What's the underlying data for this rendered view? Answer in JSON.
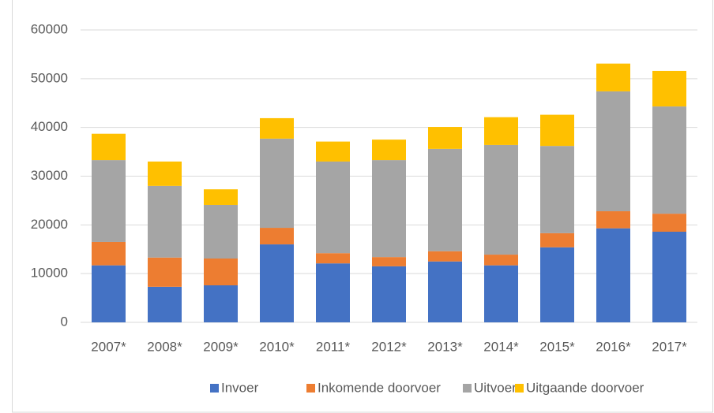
{
  "chart_data": {
    "type": "stacked_bar",
    "categories": [
      "2007*",
      "2008*",
      "2009*",
      "2010*",
      "2011*",
      "2012*",
      "2013*",
      "2014*",
      "2015*",
      "2016*",
      "2017*"
    ],
    "series": [
      {
        "name": "Invoer",
        "color": "#4472c4",
        "values": [
          11700,
          7300,
          7600,
          16000,
          12100,
          11500,
          12500,
          11700,
          15400,
          19300,
          18600
        ]
      },
      {
        "name": "Inkomende doorvoer",
        "color": "#ed7d31",
        "values": [
          4800,
          6000,
          5500,
          3400,
          2100,
          1900,
          2100,
          2200,
          2900,
          3500,
          3700
        ]
      },
      {
        "name": "Uitvoer",
        "color": "#a5a5a5",
        "values": [
          16800,
          14700,
          11000,
          18300,
          18800,
          19900,
          21000,
          22500,
          17900,
          24600,
          22000
        ]
      },
      {
        "name": "Uitgaande doorvoer",
        "color": "#ffc000",
        "values": [
          5400,
          5000,
          3200,
          4200,
          4100,
          4200,
          4500,
          5700,
          6400,
          5700,
          7300
        ]
      }
    ],
    "ylim": [
      0,
      60000
    ],
    "yticks": [
      0,
      10000,
      20000,
      30000,
      40000,
      50000,
      60000
    ],
    "grid": true,
    "legend": "bottom"
  }
}
